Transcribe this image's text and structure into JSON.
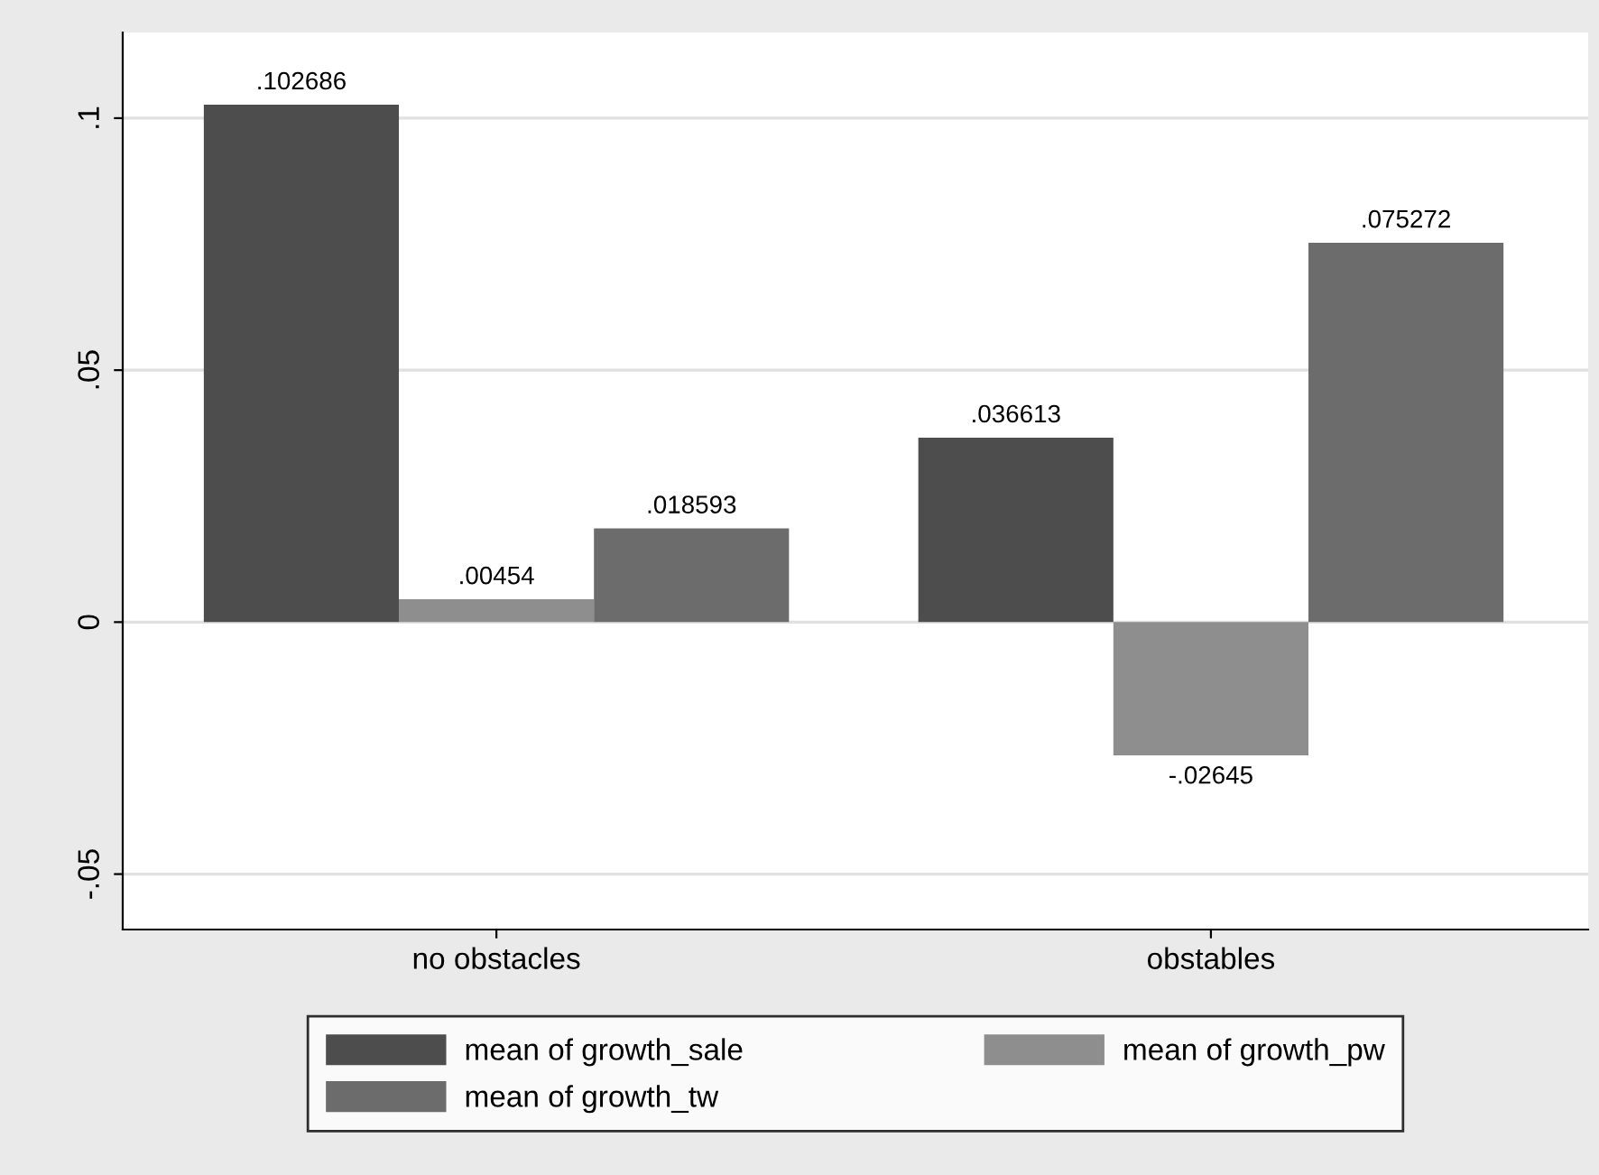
{
  "chart_data": {
    "type": "bar",
    "categories": [
      "no obstacles",
      "obstables"
    ],
    "series": [
      {
        "name": "mean of growth_sale",
        "color": "#4d4d4d",
        "values": [
          0.102686,
          0.036613
        ],
        "value_labels": [
          ".102686",
          ".036613"
        ]
      },
      {
        "name": "mean of growth_pw",
        "color": "#8e8e8e",
        "values": [
          0.00454,
          -0.02645
        ],
        "value_labels": [
          ".00454",
          "-.02645"
        ]
      },
      {
        "name": "mean of growth_tw",
        "color": "#6c6c6c",
        "values": [
          0.018593,
          0.075272
        ],
        "value_labels": [
          ".018593",
          ".075272"
        ]
      }
    ],
    "ylim": [
      -0.061,
      0.117
    ],
    "yticks": [
      {
        "value": -0.05,
        "label": "-.05"
      },
      {
        "value": 0,
        "label": "0"
      },
      {
        "value": 0.05,
        "label": ".05"
      },
      {
        "value": 0.1,
        "label": ".1"
      }
    ],
    "grid": "y",
    "legend": "bottom"
  }
}
